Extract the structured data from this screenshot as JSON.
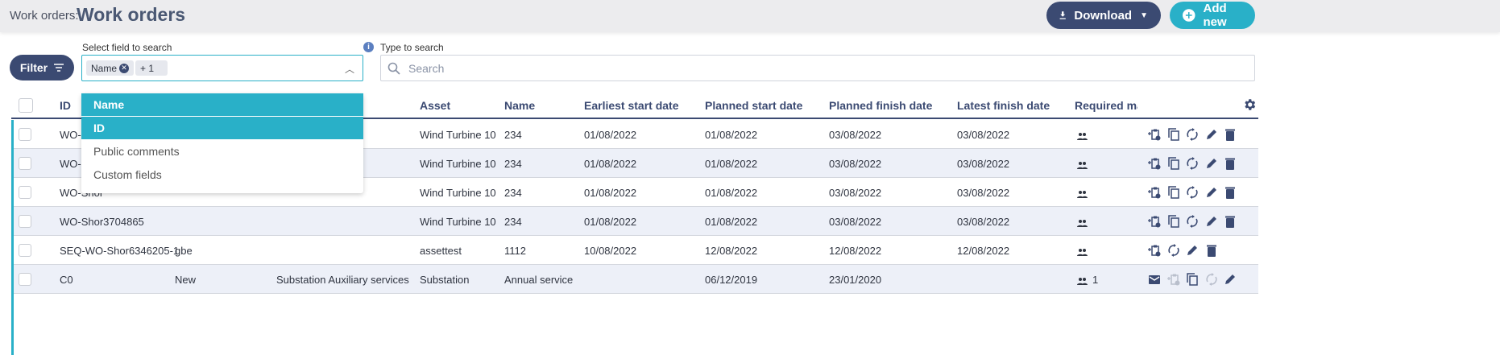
{
  "header": {
    "breadcrumb": "Work orders:",
    "title": "Work orders",
    "download_label": "Download",
    "add_new_label": "Add new"
  },
  "colors": {
    "primary": "#3b4a72",
    "accent": "#29b0c8",
    "row_alt": "#edf0f8"
  },
  "filter": {
    "label": "Filter"
  },
  "field_select": {
    "label": "Select field to search",
    "chips": [
      "Name",
      "+ 1"
    ],
    "options": [
      {
        "label": "Name",
        "selected": true
      },
      {
        "label": "ID",
        "selected": true
      },
      {
        "label": "Public comments",
        "selected": false
      },
      {
        "label": "Custom fields",
        "selected": false
      }
    ]
  },
  "search": {
    "label": "Type to search",
    "placeholder": "Search"
  },
  "table": {
    "columns": [
      "ID",
      "",
      "",
      "Asset",
      "Name",
      "Earliest start date",
      "Planned start date",
      "Planned finish date",
      "Latest finish date",
      "Required ma"
    ],
    "rows": [
      {
        "id": "WO-S",
        "c2": "",
        "c3": "",
        "asset": "Wind Turbine 10",
        "name": "234",
        "earliest": "01/08/2022",
        "pstart": "01/08/2022",
        "pfinish": "03/08/2022",
        "latest": "03/08/2022",
        "req": "",
        "actions": [
          "add-clipboard",
          "copy",
          "sync",
          "edit",
          "delete"
        ]
      },
      {
        "id": "WO-S",
        "c2": "",
        "c3": "",
        "asset": "Wind Turbine 10",
        "name": "234",
        "earliest": "01/08/2022",
        "pstart": "01/08/2022",
        "pfinish": "03/08/2022",
        "latest": "03/08/2022",
        "req": "",
        "actions": [
          "add-clipboard",
          "copy",
          "sync",
          "edit",
          "delete"
        ]
      },
      {
        "id": "WO-Shor",
        "c2": "",
        "c3": "",
        "asset": "Wind Turbine 10",
        "name": "234",
        "earliest": "01/08/2022",
        "pstart": "01/08/2022",
        "pfinish": "03/08/2022",
        "latest": "03/08/2022",
        "req": "",
        "actions": [
          "add-clipboard",
          "copy",
          "sync",
          "edit",
          "delete"
        ]
      },
      {
        "id": "WO-Shor3704865",
        "c2": "",
        "c3": "",
        "asset": "Wind Turbine 10",
        "name": "234",
        "earliest": "01/08/2022",
        "pstart": "01/08/2022",
        "pfinish": "03/08/2022",
        "latest": "03/08/2022",
        "req": "",
        "actions": [
          "add-clipboard",
          "copy",
          "sync",
          "edit",
          "delete"
        ]
      },
      {
        "id": "SEQ-WO-Shor6346205-1",
        "c2": "gbe",
        "c3": "",
        "asset": "assettest",
        "name": "1112",
        "earliest": "10/08/2022",
        "pstart": "12/08/2022",
        "pfinish": "12/08/2022",
        "latest": "12/08/2022",
        "req": "",
        "actions": [
          "add-clipboard",
          "sync",
          "edit",
          "delete"
        ]
      },
      {
        "id": "C0",
        "c2": "New",
        "c3": "Substation Auxiliary services",
        "asset": "Substation",
        "name": "Annual service",
        "earliest": "",
        "pstart": "06/12/2019",
        "pfinish": "23/01/2020",
        "latest": "",
        "req": "1",
        "actions": [
          "mail",
          "add-clipboard-disabled",
          "copy",
          "sync-disabled",
          "edit"
        ]
      }
    ]
  }
}
